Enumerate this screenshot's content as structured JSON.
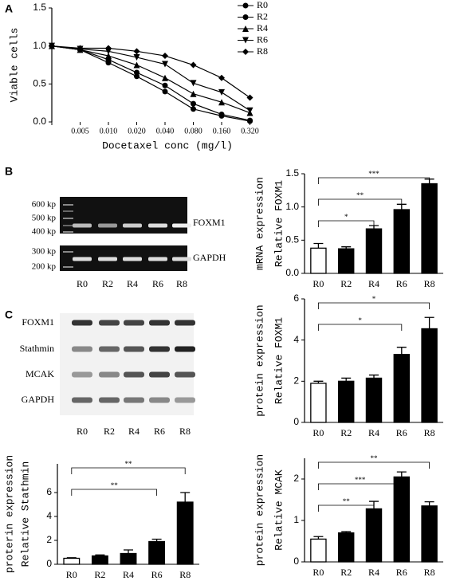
{
  "panels": [
    "A",
    "B",
    "C"
  ],
  "gel": {
    "markers": [
      "600 kp",
      "500 kp",
      "400 kp",
      "300 kp",
      "200 kp"
    ],
    "bands": [
      "FOXM1",
      "GAPDH"
    ],
    "lanes": [
      "R0",
      "R2",
      "R4",
      "R6",
      "R8"
    ]
  },
  "blot": {
    "rows": [
      "FOXM1",
      "Stathmin",
      "MCAK",
      "GAPDH"
    ],
    "lanes": [
      "R0",
      "R2",
      "R4",
      "R6",
      "R8"
    ]
  },
  "chart_data": [
    {
      "type": "line",
      "xlabel": "Docetaxel conc (mg/l)",
      "ylabel": [
        "Viable cells"
      ],
      "categories": [
        null,
        "0.005",
        "0.010",
        "0.020",
        "0.040",
        "0.080",
        "0.160",
        "0.320"
      ],
      "ylim": [
        0,
        1.5
      ],
      "yticks": [
        {
          "value": 0,
          "label": "0.0"
        },
        {
          "value": 0.5,
          "label": "0.5"
        },
        {
          "value": 1,
          "label": "1.0"
        },
        {
          "value": 1.5,
          "label": "1.5"
        }
      ],
      "series": [
        {
          "name": "R0",
          "color": "#000000",
          "marker": "circle",
          "values": [
            1.0,
            0.95,
            0.78,
            0.6,
            0.4,
            0.17,
            0.08,
            0.01
          ]
        },
        {
          "name": "R2",
          "color": "#000000",
          "marker": "circle",
          "values": [
            1.0,
            0.95,
            0.82,
            0.65,
            0.48,
            0.24,
            0.1,
            0.02
          ]
        },
        {
          "name": "R4",
          "color": "#000000",
          "marker": "triangle-up",
          "values": [
            1.0,
            0.95,
            0.87,
            0.75,
            0.58,
            0.37,
            0.26,
            0.12
          ]
        },
        {
          "name": "R6",
          "color": "#000000",
          "marker": "triangle-down",
          "values": [
            1.0,
            0.96,
            0.93,
            0.85,
            0.76,
            0.51,
            0.39,
            0.15
          ]
        },
        {
          "name": "R8",
          "color": "#000000",
          "marker": "diamond",
          "values": [
            1.0,
            0.97,
            0.97,
            0.93,
            0.87,
            0.75,
            0.58,
            0.32
          ]
        }
      ]
    },
    {
      "type": "bar",
      "ylabel": [
        "Relative FOXM1",
        "mRNA expression"
      ],
      "categories": [
        "R0",
        "R2",
        "R4",
        "R6",
        "R8"
      ],
      "values": [
        0.38,
        0.37,
        0.67,
        0.96,
        1.35
      ],
      "errors": [
        0.07,
        0.03,
        0.05,
        0.08,
        0.07
      ],
      "colors": [
        "#ffffff",
        "#000000",
        "#000000",
        "#000000",
        "#000000"
      ],
      "ylim": [
        0,
        1.5
      ],
      "yticks": [
        {
          "value": 0,
          "label": "0.0"
        },
        {
          "value": 0.5,
          "label": "0.5"
        },
        {
          "value": 1,
          "label": "1.0"
        },
        {
          "value": 1.5,
          "label": "1.5"
        }
      ],
      "annotations": [
        {
          "label": "*",
          "pair": [
            0,
            2
          ]
        },
        {
          "label": "**",
          "pair": [
            0,
            3
          ]
        },
        {
          "label": "***",
          "pair": [
            0,
            4
          ]
        }
      ]
    },
    {
      "type": "bar",
      "ylabel": [
        "Relative FOXM1",
        "protein expression"
      ],
      "categories": [
        "R0",
        "R2",
        "R4",
        "R6",
        "R8"
      ],
      "values": [
        1.9,
        2.0,
        2.15,
        3.3,
        4.55
      ],
      "errors": [
        0.1,
        0.15,
        0.15,
        0.35,
        0.55
      ],
      "colors": [
        "#ffffff",
        "#000000",
        "#000000",
        "#000000",
        "#000000"
      ],
      "ylim": [
        0,
        6
      ],
      "yticks": [
        0,
        2,
        4,
        6
      ],
      "annotations": [
        {
          "label": "*",
          "pair": [
            0,
            3
          ]
        },
        {
          "label": "*",
          "pair": [
            0,
            4
          ]
        }
      ]
    },
    {
      "type": "bar",
      "ylabel": [
        "Relative Stathmin",
        "proterin expression"
      ],
      "categories": [
        "R0",
        "R2",
        "R4",
        "R6",
        "R8"
      ],
      "values": [
        0.5,
        0.7,
        0.9,
        1.9,
        5.2
      ],
      "errors": [
        0.05,
        0.08,
        0.3,
        0.2,
        0.8
      ],
      "colors": [
        "#ffffff",
        "#000000",
        "#000000",
        "#000000",
        "#000000"
      ],
      "ylim": [
        0,
        8.4
      ],
      "yticks": [
        0,
        2,
        4,
        6
      ],
      "annotations": [
        {
          "label": "**",
          "pair": [
            0,
            3
          ]
        },
        {
          "label": "**",
          "pair": [
            0,
            4
          ]
        }
      ]
    },
    {
      "type": "bar",
      "ylabel": [
        "Relative MCAK",
        "protein expression"
      ],
      "categories": [
        "R0",
        "R2",
        "R4",
        "R6",
        "R8"
      ],
      "values": [
        0.55,
        0.7,
        1.28,
        2.05,
        1.35
      ],
      "errors": [
        0.06,
        0.03,
        0.18,
        0.12,
        0.1
      ],
      "colors": [
        "#ffffff",
        "#000000",
        "#000000",
        "#000000",
        "#000000"
      ],
      "ylim": [
        0,
        2.5
      ],
      "yticks": [
        0,
        1,
        2
      ],
      "annotations": [
        {
          "label": "**",
          "pair": [
            0,
            2
          ]
        },
        {
          "label": "***",
          "pair": [
            0,
            3
          ]
        },
        {
          "label": "**",
          "pair": [
            0,
            4
          ]
        }
      ]
    }
  ]
}
